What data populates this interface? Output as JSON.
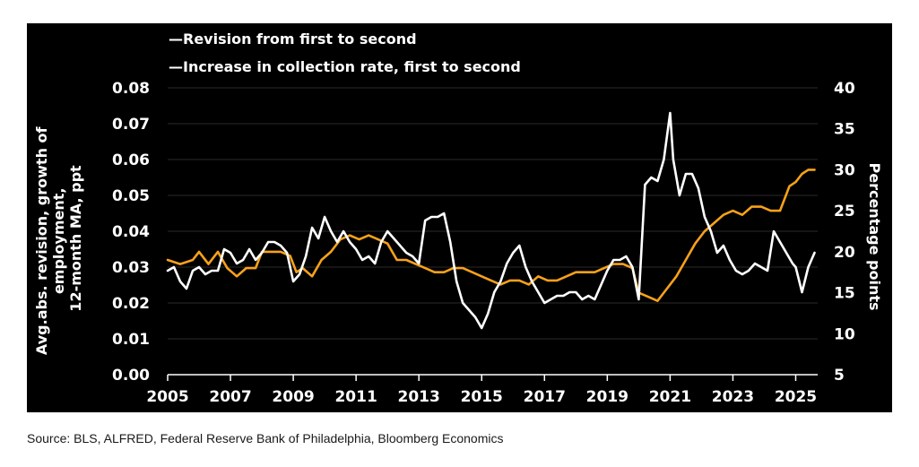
{
  "chart_data": {
    "type": "line",
    "title": "",
    "source": "Source: BLS, ALFRED, Federal Reserve Bank of Philadelphia, Bloomberg Economics",
    "xlabel": "",
    "ylabel_left": [
      "Avg.abs. revision, growth of",
      "employment,",
      "12-month MA, ppt"
    ],
    "ylabel_right": "Percentage points",
    "xlim": [
      2005,
      2025.7
    ],
    "ylim_left": [
      0,
      0.08
    ],
    "ylim_right": [
      5,
      40
    ],
    "x_ticks": [
      "2005",
      "2007",
      "2009",
      "2011",
      "2013",
      "2015",
      "2017",
      "2019",
      "2021",
      "2023",
      "2025"
    ],
    "x_tick_values": [
      2005,
      2007,
      2009,
      2011,
      2013,
      2015,
      2017,
      2019,
      2021,
      2023,
      2025
    ],
    "y_ticks_left": [
      "0.00",
      "0.01",
      "0.02",
      "0.03",
      "0.04",
      "0.05",
      "0.06",
      "0.07",
      "0.08"
    ],
    "y_tick_values_left": [
      0,
      0.01,
      0.02,
      0.03,
      0.04,
      0.05,
      0.06,
      0.07,
      0.08
    ],
    "y_ticks_right": [
      "5",
      "10",
      "15",
      "20",
      "25",
      "30",
      "35",
      "40"
    ],
    "y_tick_values_right": [
      5,
      10,
      15,
      20,
      25,
      30,
      35,
      40
    ],
    "series": [
      {
        "name": "Revision from first to second",
        "legend_label": "—Revision from first to second",
        "axis": "left",
        "color": "#ffffff",
        "x": [
          2005.0,
          2005.2,
          2005.4,
          2005.6,
          2005.8,
          2006.0,
          2006.2,
          2006.4,
          2006.6,
          2006.8,
          2007.0,
          2007.2,
          2007.4,
          2007.6,
          2007.8,
          2008.0,
          2008.2,
          2008.4,
          2008.6,
          2008.8,
          2009.0,
          2009.2,
          2009.4,
          2009.6,
          2009.8,
          2010.0,
          2010.2,
          2010.4,
          2010.6,
          2010.8,
          2011.0,
          2011.2,
          2011.4,
          2011.6,
          2011.8,
          2012.0,
          2012.2,
          2012.4,
          2012.6,
          2012.8,
          2013.0,
          2013.2,
          2013.4,
          2013.6,
          2013.8,
          2014.0,
          2014.2,
          2014.4,
          2014.6,
          2014.8,
          2015.0,
          2015.2,
          2015.4,
          2015.6,
          2015.8,
          2016.0,
          2016.2,
          2016.4,
          2016.6,
          2016.8,
          2017.0,
          2017.2,
          2017.4,
          2017.6,
          2017.8,
          2018.0,
          2018.2,
          2018.4,
          2018.6,
          2018.8,
          2019.0,
          2019.2,
          2019.4,
          2019.6,
          2019.8,
          2020.0,
          2020.2,
          2020.4,
          2020.6,
          2020.8,
          2021.0,
          2021.1,
          2021.3,
          2021.5,
          2021.7,
          2021.9,
          2022.1,
          2022.3,
          2022.5,
          2022.7,
          2022.9,
          2023.1,
          2023.3,
          2023.5,
          2023.7,
          2023.9,
          2024.1,
          2024.3,
          2024.5,
          2024.7,
          2024.9,
          2025.0,
          2025.2,
          2025.4,
          2025.6
        ],
        "values": [
          0.029,
          0.03,
          0.026,
          0.024,
          0.029,
          0.03,
          0.028,
          0.029,
          0.029,
          0.035,
          0.034,
          0.031,
          0.032,
          0.035,
          0.032,
          0.034,
          0.037,
          0.037,
          0.036,
          0.034,
          0.026,
          0.028,
          0.033,
          0.041,
          0.038,
          0.044,
          0.04,
          0.037,
          0.04,
          0.037,
          0.035,
          0.032,
          0.033,
          0.031,
          0.037,
          0.04,
          0.038,
          0.036,
          0.034,
          0.033,
          0.031,
          0.043,
          0.044,
          0.044,
          0.045,
          0.037,
          0.026,
          0.02,
          0.018,
          0.016,
          0.013,
          0.017,
          0.023,
          0.026,
          0.031,
          0.034,
          0.036,
          0.03,
          0.026,
          0.023,
          0.02,
          0.021,
          0.022,
          0.022,
          0.023,
          0.023,
          0.021,
          0.022,
          0.021,
          0.025,
          0.029,
          0.032,
          0.032,
          0.033,
          0.03,
          0.021,
          0.053,
          0.055,
          0.054,
          0.06,
          0.073,
          0.06,
          0.05,
          0.056,
          0.056,
          0.052,
          0.044,
          0.04,
          0.034,
          0.036,
          0.032,
          0.029,
          0.028,
          0.029,
          0.031,
          0.03,
          0.029,
          0.04,
          0.037,
          0.034,
          0.031,
          0.03,
          0.023,
          0.03,
          0.034
        ]
      },
      {
        "name": "Increase in collection rate, first to second",
        "legend_label": "—Increase in collection rate, first to second",
        "axis": "right",
        "color": "#f7a11a",
        "x": [
          2005.0,
          2005.4,
          2005.8,
          2006.0,
          2006.3,
          2006.6,
          2006.9,
          2007.2,
          2007.5,
          2007.8,
          2008.0,
          2008.3,
          2008.6,
          2008.9,
          2009.1,
          2009.3,
          2009.6,
          2009.9,
          2010.2,
          2010.5,
          2010.8,
          2011.1,
          2011.4,
          2011.7,
          2012.0,
          2012.3,
          2012.6,
          2012.9,
          2013.2,
          2013.5,
          2013.8,
          2014.1,
          2014.4,
          2014.7,
          2015.0,
          2015.3,
          2015.6,
          2015.9,
          2016.2,
          2016.5,
          2016.8,
          2017.1,
          2017.4,
          2017.7,
          2018.0,
          2018.3,
          2018.6,
          2018.9,
          2019.2,
          2019.5,
          2019.8,
          2020.0,
          2020.3,
          2020.6,
          2020.9,
          2021.2,
          2021.5,
          2021.8,
          2022.1,
          2022.4,
          2022.7,
          2023.0,
          2023.3,
          2023.6,
          2023.9,
          2024.2,
          2024.5,
          2024.8,
          2025.0,
          2025.2,
          2025.4,
          2025.6
        ],
        "values": [
          19.0,
          18.5,
          19.0,
          20.0,
          18.5,
          20.0,
          18.0,
          17.0,
          18.0,
          18.0,
          20.0,
          20.0,
          20.0,
          19.5,
          17.5,
          18.0,
          17.0,
          19.0,
          20.0,
          21.5,
          22.0,
          21.5,
          22.0,
          21.5,
          21.0,
          19.0,
          19.0,
          18.5,
          18.0,
          17.5,
          17.5,
          18.0,
          18.0,
          17.5,
          17.0,
          16.5,
          16.0,
          16.5,
          16.5,
          16.0,
          17.0,
          16.5,
          16.5,
          17.0,
          17.5,
          17.5,
          17.5,
          18.0,
          18.5,
          18.5,
          18.0,
          15.0,
          14.5,
          14.0,
          15.5,
          17.0,
          19.0,
          21.0,
          22.5,
          23.5,
          24.5,
          25.0,
          24.5,
          25.5,
          25.5,
          25.0,
          25.0,
          28.0,
          28.5,
          29.5,
          30.0,
          30.0
        ]
      }
    ]
  }
}
